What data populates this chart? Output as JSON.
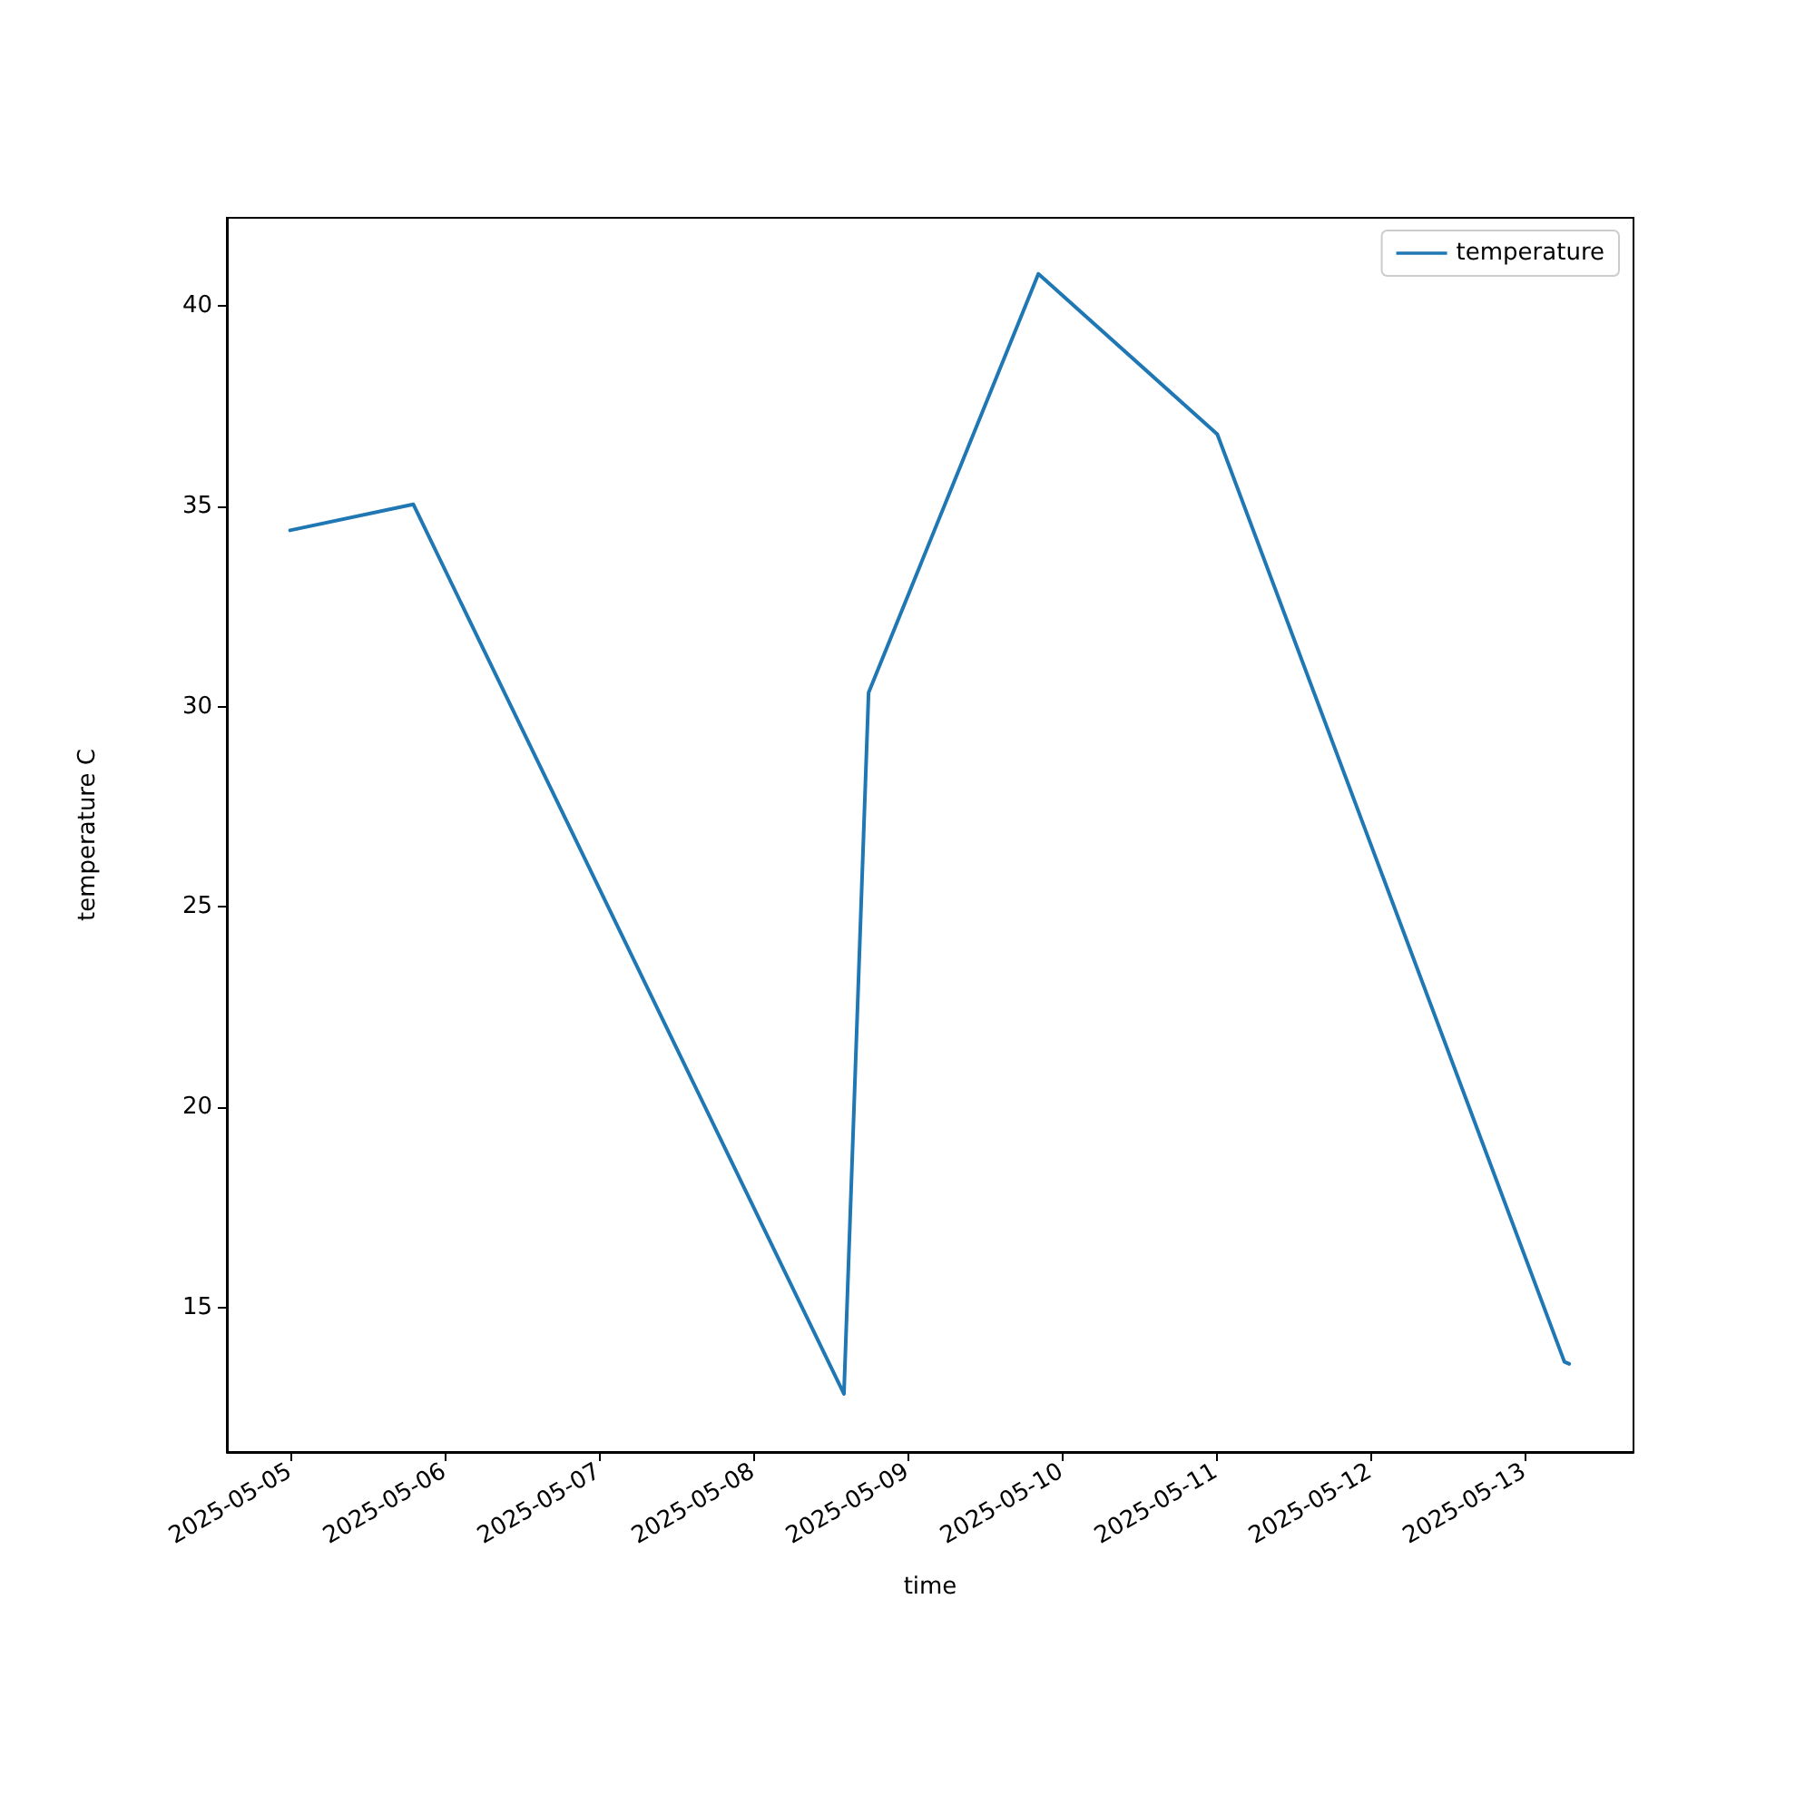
{
  "chart_data": {
    "type": "line",
    "xlabel": "time",
    "ylabel": "temperature C",
    "x": [
      "2025-05-05T00:00",
      "2025-05-05T19:10",
      "2025-05-08T14:10",
      "2025-05-08T18:00",
      "2025-05-09T20:25",
      "2025-05-11T00:15",
      "2025-05-13T06:15",
      "2025-05-13T07:00"
    ],
    "series": [
      {
        "name": "temperature",
        "color": "#1f77b4",
        "values": [
          34.4,
          35.05,
          12.85,
          30.35,
          40.8,
          36.8,
          13.65,
          13.6
        ]
      }
    ],
    "xlim": [
      "2025-05-04T14:10",
      "2025-05-13T17:00"
    ],
    "xticks": [
      "2025-05-05",
      "2025-05-06",
      "2025-05-07",
      "2025-05-08",
      "2025-05-09",
      "2025-05-10",
      "2025-05-11",
      "2025-05-12",
      "2025-05-13"
    ],
    "ylim": [
      11.4,
      42.2
    ],
    "yticks": [
      15,
      20,
      25,
      30,
      35,
      40
    ],
    "grid": false,
    "legend": "top right",
    "marker": "none",
    "line_style": "solid"
  }
}
